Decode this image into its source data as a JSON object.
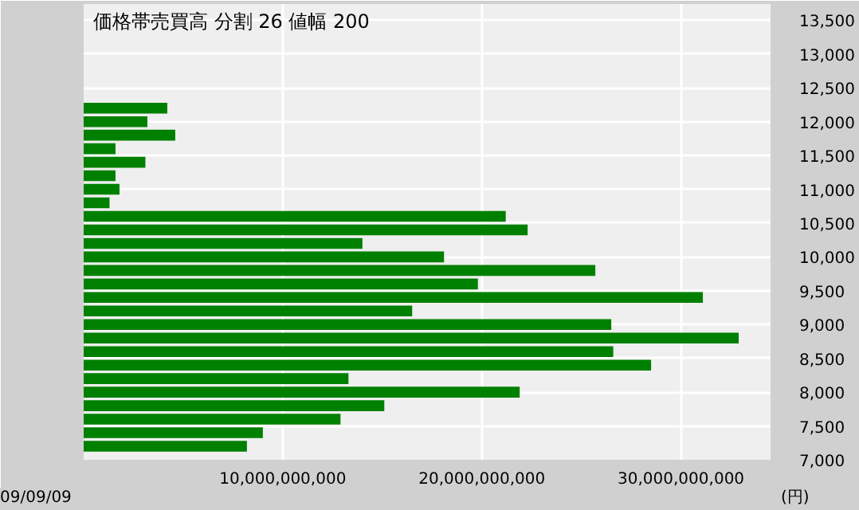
{
  "chart_data": {
    "type": "bar",
    "orientation": "horizontal",
    "title": "価格帯売買高  分割 26  値幅 200",
    "ylabel": "(円)",
    "x": [
      12200,
      12000,
      11800,
      11600,
      11400,
      11200,
      11000,
      10800,
      10600,
      10400,
      10200,
      10000,
      9800,
      9600,
      9400,
      9200,
      9000,
      8800,
      8600,
      8400,
      8200,
      8000,
      7800,
      7600,
      7400,
      7200
    ],
    "values": [
      4200000000,
      3200000000,
      4600000000,
      1600000000,
      3100000000,
      1600000000,
      1800000000,
      1300000000,
      21200000000,
      22300000000,
      14000000000,
      18100000000,
      25700000000,
      19800000000,
      31100000000,
      16500000000,
      26500000000,
      32900000000,
      26600000000,
      28500000000,
      13300000000,
      21900000000,
      15100000000,
      12900000000,
      9000000000,
      8200000000
    ],
    "color": "#008000",
    "xlim": [
      0,
      34500000000
    ],
    "xticks": [
      {
        "value": 10000000000,
        "label": "10,000,000,000"
      },
      {
        "value": 20000000000,
        "label": "20,000,000,000"
      },
      {
        "value": 30000000000,
        "label": "30,000,000,000"
      }
    ],
    "ylim": [
      7000,
      13740
    ],
    "yticks": [
      {
        "value": 7000,
        "label": "7,000"
      },
      {
        "value": 7500,
        "label": "7,500"
      },
      {
        "value": 8000,
        "label": "8,000"
      },
      {
        "value": 8500,
        "label": "8,500"
      },
      {
        "value": 9000,
        "label": "9,000"
      },
      {
        "value": 9500,
        "label": "9,500"
      },
      {
        "value": 10000,
        "label": "10,000"
      },
      {
        "value": 10500,
        "label": "10,500"
      },
      {
        "value": 11000,
        "label": "11,000"
      },
      {
        "value": 11500,
        "label": "11,500"
      },
      {
        "value": 12000,
        "label": "12,000"
      },
      {
        "value": 12500,
        "label": "12,500"
      },
      {
        "value": 13000,
        "label": "13,000"
      },
      {
        "value": 13500,
        "label": "13,500"
      }
    ],
    "grid": true,
    "annotations": [
      "09/09/09"
    ]
  }
}
